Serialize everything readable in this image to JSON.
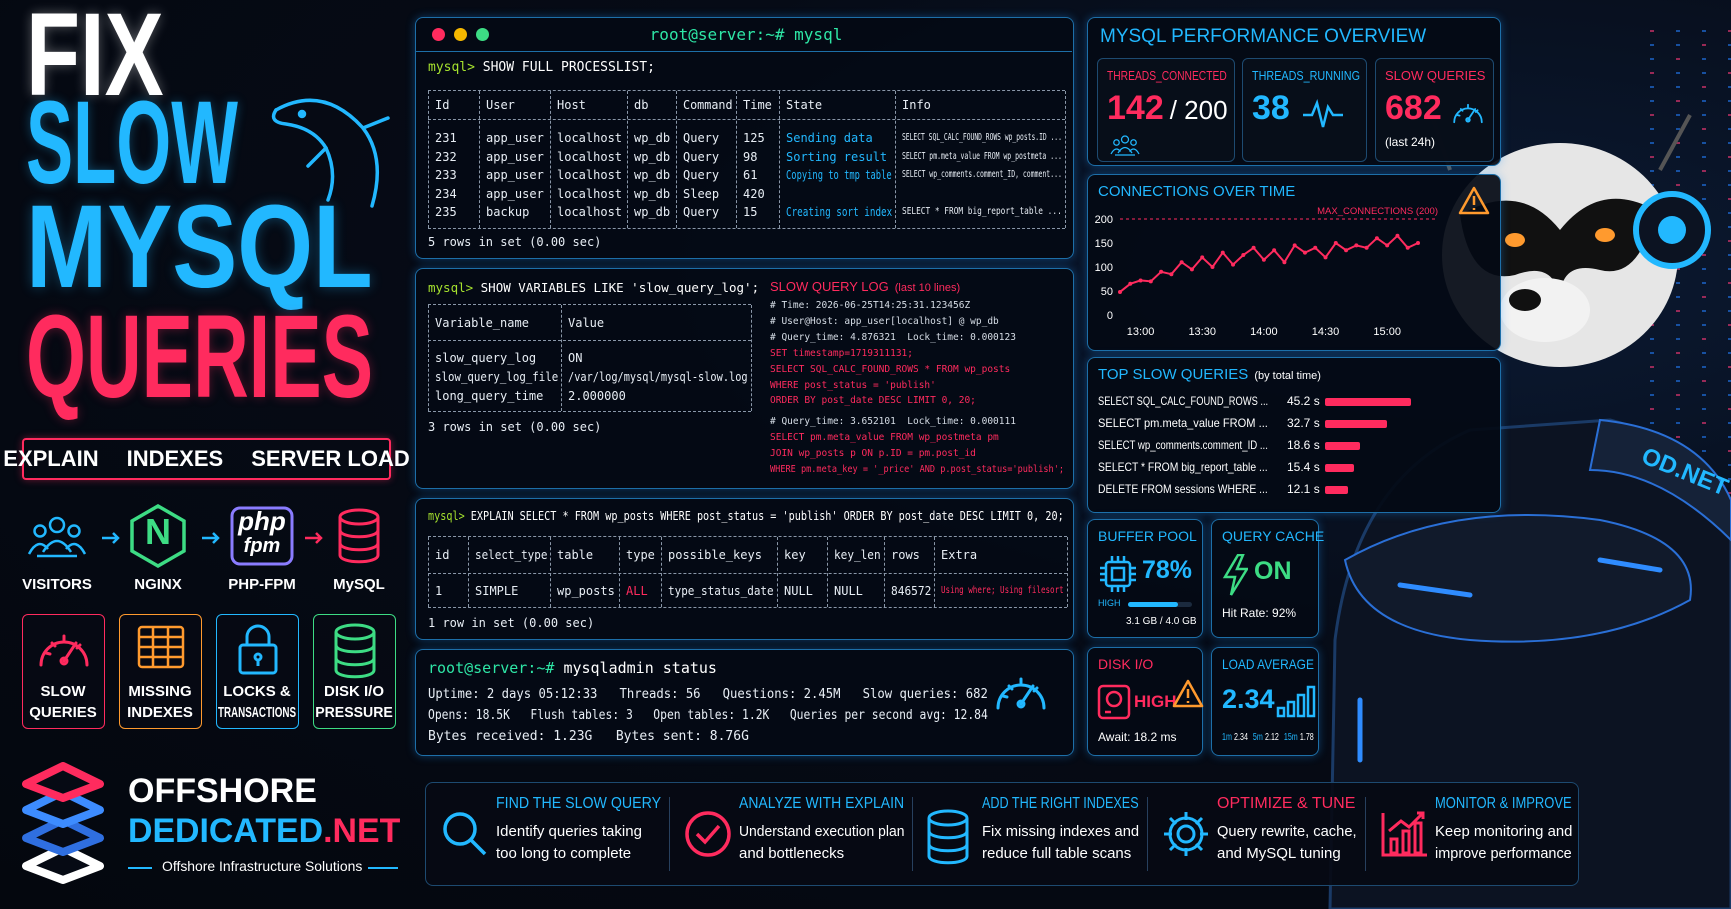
{
  "hero": {
    "title": [
      "FIX",
      "SLOW",
      "MYSQL",
      "QUERIES"
    ],
    "tags": [
      "EXPLAIN",
      "INDEXES",
      "SERVER LOAD"
    ]
  },
  "flow": {
    "steps": [
      "VISITORS",
      "NGINX",
      "PHP-FPM",
      "MySQL"
    ],
    "nginx_logo": "N",
    "php_logo": [
      "php",
      "fpm"
    ]
  },
  "issues": [
    [
      "SLOW",
      "QUERIES"
    ],
    [
      "MISSING",
      "INDEXES"
    ],
    [
      "LOCKS &",
      "TRANSACTIONS"
    ],
    [
      "DISK I/O",
      "PRESSURE"
    ]
  ],
  "brand": {
    "name": "OFFSHORE",
    "name2": "DEDICATED",
    "tld": ".NET",
    "tagline": "Offshore Infrastructure Solutions"
  },
  "terminal": {
    "title": "root@server:~# mysql",
    "processlist": {
      "prompt": "mysql>",
      "command": "SHOW FULL PROCESSLIST;",
      "columns": [
        "Id",
        "User",
        "Host",
        "db",
        "Command",
        "Time",
        "State",
        "Info"
      ],
      "rows": [
        [
          "231",
          "app_user",
          "localhost",
          "wp_db",
          "Query",
          "125",
          "Sending data",
          "SELECT SQL_CALC_FOUND_ROWS wp_posts.ID ..."
        ],
        [
          "232",
          "app_user",
          "localhost",
          "wp_db",
          "Query",
          "98",
          "Sorting result",
          "SELECT pm.meta_value FROM wp_postmeta ..."
        ],
        [
          "233",
          "app_user",
          "localhost",
          "wp_db",
          "Query",
          "61",
          "Copying to tmp table",
          "SELECT wp_comments.comment_ID, comment..."
        ],
        [
          "234",
          "app_user",
          "localhost",
          "wp_db",
          "Sleep",
          "420",
          null,
          null
        ],
        [
          "235",
          "backup",
          "localhost",
          "wp_db",
          "Query",
          "15",
          "Creating sort index",
          "SELECT * FROM big_report_table ..."
        ]
      ],
      "footer": "5 rows in set (0.00 sec)"
    },
    "variables": {
      "prompt": "mysql>",
      "command": "SHOW VARIABLES LIKE 'slow_query_log';",
      "columns": [
        "Variable_name",
        "Value"
      ],
      "rows": [
        [
          "slow_query_log",
          "ON"
        ],
        [
          "slow_query_log_file",
          "/var/log/mysql/mysql-slow.log"
        ],
        [
          "long_query_time",
          "2.000000"
        ]
      ],
      "footer": "3 rows in set (0.00 sec)"
    },
    "slow_log": {
      "title": "SLOW QUERY LOG",
      "subtitle": "(last 10 lines)",
      "entries": [
        [
          {
            "text": "# Time: 2026-06-25T14:25:31.123456Z",
            "kind": "comment"
          },
          {
            "text": "# User@Host: app_user[localhost] @ wp_db",
            "kind": "comment"
          },
          {
            "text": "# Query_time: 4.876321  Lock_time: 0.000123",
            "kind": "comment"
          },
          {
            "text": "SET timestamp=1719311131;",
            "kind": "sql"
          },
          {
            "text": "SELECT SQL_CALC_FOUND_ROWS * FROM wp_posts",
            "kind": "sql"
          },
          {
            "text": "WHERE post_status = 'publish'",
            "kind": "sql"
          },
          {
            "text": "ORDER BY post_date DESC LIMIT 0, 20;",
            "kind": "sql"
          }
        ],
        [
          {
            "text": "# Query_time: 3.652101  Lock_time: 0.000111",
            "kind": "comment"
          },
          {
            "text": "SELECT pm.meta_value FROM wp_postmeta pm",
            "kind": "sql"
          },
          {
            "text": "JOIN wp_posts p ON p.ID = pm.post_id",
            "kind": "sql"
          },
          {
            "text": "WHERE pm.meta_key = '_price' AND p.post_status='publish';",
            "kind": "sql"
          }
        ]
      ]
    },
    "explain": {
      "prompt": "mysql>",
      "command": "EXPLAIN SELECT * FROM wp_posts WHERE post_status = 'publish' ORDER BY post_date DESC LIMIT 0, 20;",
      "columns": [
        "id",
        "select_type",
        "table",
        "type",
        "possible_keys",
        "key",
        "key_len",
        "rows",
        "Extra"
      ],
      "rows": [
        [
          "1",
          "SIMPLE",
          "wp_posts",
          "ALL",
          "type_status_date",
          "NULL",
          "NULL",
          "846572",
          "Using where; Using filesort"
        ]
      ],
      "footer": "1 row in set (0.00 sec)"
    },
    "status": {
      "prompt": "root@server:~#",
      "command": "mysqladmin status",
      "lines": [
        "Uptime: 2 days 05:12:33   Threads: 56   Questions: 2.45M   Slow queries: 682",
        "Opens: 18.5K   Flush tables: 3   Open tables: 1.2K   Queries per second avg: 12.84",
        "Bytes received: 1.23G   Bytes sent: 8.76G"
      ]
    }
  },
  "overview": {
    "title": "MYSQL PERFORMANCE OVERVIEW",
    "threads_connected": {
      "label": "THREADS_CONNECTED",
      "value": 142,
      "of": "/ 200"
    },
    "threads_running": {
      "label": "THREADS_RUNNING",
      "value": 38
    },
    "slow_queries": {
      "label": "SLOW QUERIES",
      "value": 682,
      "note": "(last 24h)"
    }
  },
  "connections": {
    "type": "line",
    "title": "CONNECTIONS OVER TIME",
    "limit": 200,
    "limit_label": "MAX_CONNECTIONS (200)",
    "x": [
      "12:50",
      "12:55",
      "13:00",
      "13:05",
      "13:10",
      "13:15",
      "13:20",
      "13:25",
      "13:30",
      "13:35",
      "13:40",
      "13:45",
      "13:50",
      "13:55",
      "14:00",
      "14:05",
      "14:10",
      "14:15",
      "14:20",
      "14:25",
      "14:30",
      "14:35",
      "14:40",
      "14:45",
      "14:50",
      "14:55",
      "15:00",
      "15:05",
      "15:10",
      "15:15"
    ],
    "values": [
      48,
      65,
      72,
      70,
      90,
      85,
      110,
      95,
      120,
      100,
      130,
      105,
      125,
      140,
      115,
      135,
      110,
      145,
      130,
      140,
      120,
      150,
      135,
      145,
      140,
      160,
      145,
      165,
      140,
      150
    ],
    "xticks": [
      "13:00",
      "13:30",
      "14:00",
      "14:30",
      "15:00"
    ],
    "ylim": [
      0,
      200
    ],
    "yticks": [
      0,
      50,
      100,
      150,
      200
    ],
    "color": "#ff2b5e"
  },
  "top_slow": {
    "type": "bar",
    "title": "TOP SLOW QUERIES",
    "subtitle": "(by total time)",
    "categories": [
      "SELECT SQL_CALC_FOUND_ROWS ...",
      "SELECT pm.meta_value FROM ...",
      "SELECT wp_comments.comment_ID ...",
      "SELECT * FROM big_report_table ...",
      "DELETE FROM sessions WHERE ..."
    ],
    "values": [
      45.2,
      32.7,
      18.6,
      15.4,
      12.1
    ],
    "value_labels": [
      "45.2 s",
      "32.7 s",
      "18.6 s",
      "15.4 s",
      "12.1 s"
    ],
    "color": "#ff2b5e"
  },
  "buffer_pool": {
    "title": "BUFFER POOL",
    "value": 78,
    "value_label": "78%",
    "level": "HIGH",
    "usage": "3.1 GB / 4.0 GB"
  },
  "query_cache": {
    "title": "QUERY CACHE",
    "state": "ON",
    "hit_rate": "Hit Rate: 92%"
  },
  "disk_io": {
    "title": "DISK I/O",
    "level": "HIGH",
    "await": "Await: 18.2 ms"
  },
  "load_average": {
    "title": "LOAD AVERAGE",
    "value": "2.34",
    "periods": [
      [
        "1m",
        "2.34"
      ],
      [
        "5m",
        "2.12"
      ],
      [
        "15m",
        "1.78"
      ]
    ]
  },
  "steps": [
    {
      "title": "FIND THE SLOW QUERY",
      "lines": [
        "Identify queries taking",
        "too long to complete"
      ]
    },
    {
      "title": "ANALYZE WITH EXPLAIN",
      "lines": [
        "Understand execution plan",
        "and bottlenecks"
      ]
    },
    {
      "title": "ADD THE RIGHT INDEXES",
      "lines": [
        "Fix missing indexes and",
        "reduce full table scans"
      ]
    },
    {
      "title": "OPTIMIZE & TUNE",
      "lines": [
        "Query rewrite, cache,",
        "and MySQL tuning"
      ]
    },
    {
      "title": "MONITOR & IMPROVE",
      "lines": [
        "Keep monitoring and",
        "improve performance"
      ]
    }
  ],
  "mascot": {
    "badge": "OD.NET"
  }
}
